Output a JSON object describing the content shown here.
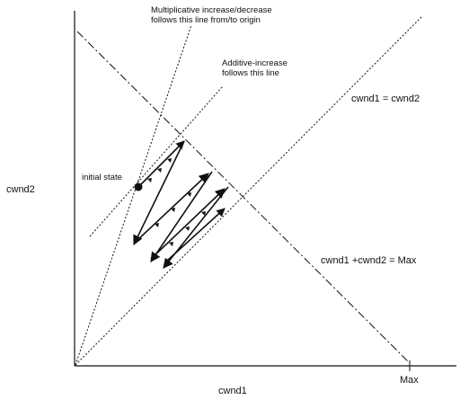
{
  "labels": {
    "x_axis": "cwnd1",
    "y_axis": "cwnd2",
    "max_tick": "Max",
    "equal_line": "cwnd1 = cwnd2",
    "sum_line": "cwnd1 +cwnd2 = Max",
    "initial_state": "initial state",
    "mult_line_1": "Multiplicative increase/decrease",
    "mult_line_2": "follows this line from/to origin",
    "additive_line_1": "Additive-increase",
    "additive_line_2": "follows this line"
  },
  "colors": {
    "ink": "#111111",
    "background": "#ffffff"
  }
}
